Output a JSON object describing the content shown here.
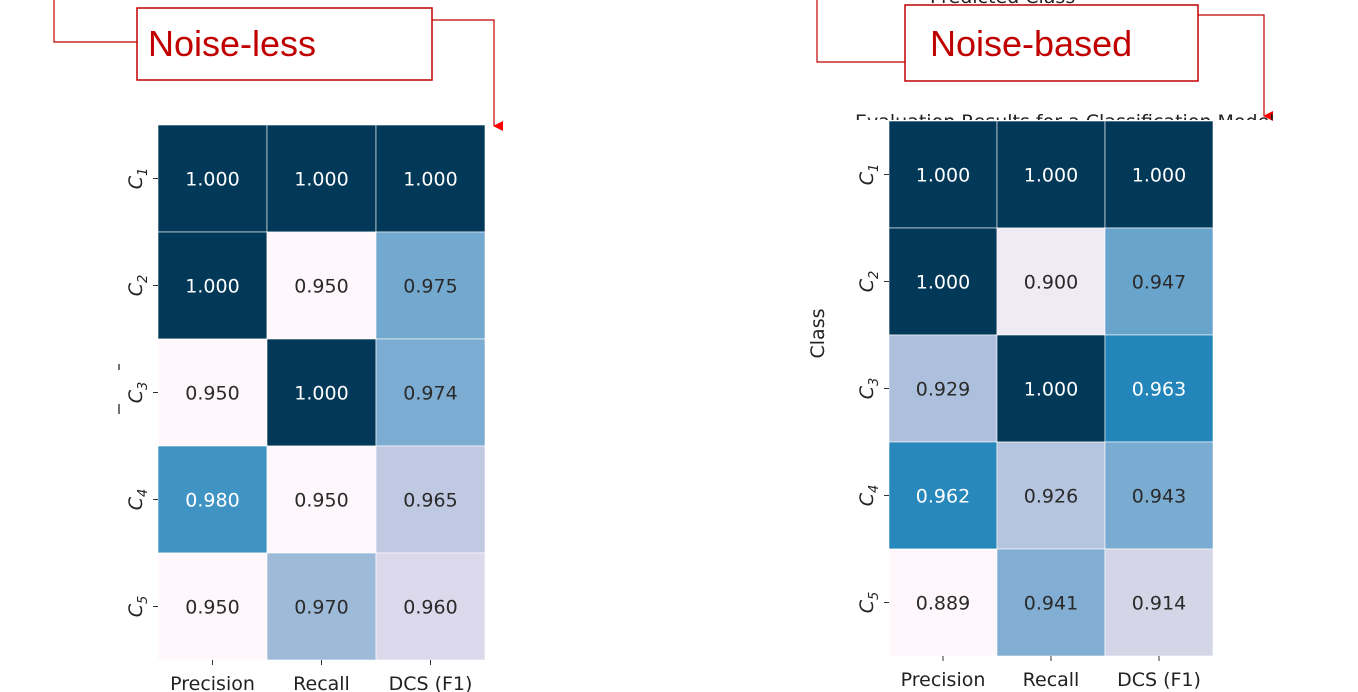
{
  "figure": {
    "left_tag": "Noise-less",
    "right_tag": "Noise-based",
    "top_right_partial": "Predicted Class",
    "right_partial_title": "Evaluation Results for a Classification Model"
  },
  "chart_data": [
    {
      "type": "heatmap",
      "title": "",
      "xlabel": "",
      "ylabel": "",
      "x": [
        "Precision",
        "Recall",
        "DCS (F1)"
      ],
      "y": [
        "C1",
        "C2",
        "C3",
        "C4",
        "C5"
      ],
      "y_display": [
        {
          "base": "C",
          "sub": "1"
        },
        {
          "base": "C",
          "sub": "2"
        },
        {
          "base": "C",
          "sub": "3"
        },
        {
          "base": "C",
          "sub": "4"
        },
        {
          "base": "C",
          "sub": "5"
        }
      ],
      "values": [
        [
          1.0,
          1.0,
          1.0
        ],
        [
          1.0,
          0.95,
          0.975
        ],
        [
          0.95,
          1.0,
          0.974
        ],
        [
          0.98,
          0.95,
          0.965
        ],
        [
          0.95,
          0.97,
          0.96
        ]
      ],
      "labels": [
        [
          "1.000",
          "1.000",
          "1.000"
        ],
        [
          "1.000",
          "0.950",
          "0.975"
        ],
        [
          "0.950",
          "1.000",
          "0.974"
        ],
        [
          "0.980",
          "0.950",
          "0.965"
        ],
        [
          "0.950",
          "0.970",
          "0.960"
        ]
      ],
      "colormap": "PuBu",
      "colorbar": false
    },
    {
      "type": "heatmap",
      "title": "Evaluation Results for a Classification Model",
      "xlabel": "",
      "ylabel": "Class",
      "x": [
        "Precision",
        "Recall",
        "DCS (F1)"
      ],
      "y": [
        "C1",
        "C2",
        "C3",
        "C4",
        "C5"
      ],
      "y_display": [
        {
          "base": "C",
          "sub": "1"
        },
        {
          "base": "C",
          "sub": "2"
        },
        {
          "base": "C",
          "sub": "3"
        },
        {
          "base": "C",
          "sub": "4"
        },
        {
          "base": "C",
          "sub": "5"
        }
      ],
      "values": [
        [
          1.0,
          1.0,
          1.0
        ],
        [
          1.0,
          0.9,
          0.947
        ],
        [
          0.929,
          1.0,
          0.963
        ],
        [
          0.962,
          0.926,
          0.943
        ],
        [
          0.889,
          0.941,
          0.914
        ]
      ],
      "labels": [
        [
          "1.000",
          "1.000",
          "1.000"
        ],
        [
          "1.000",
          "0.900",
          "0.947"
        ],
        [
          "0.929",
          "1.000",
          "0.963"
        ],
        [
          "0.962",
          "0.926",
          "0.943"
        ],
        [
          "0.889",
          "0.941",
          "0.914"
        ]
      ],
      "colormap": "PuBu",
      "colorbar": false
    }
  ]
}
